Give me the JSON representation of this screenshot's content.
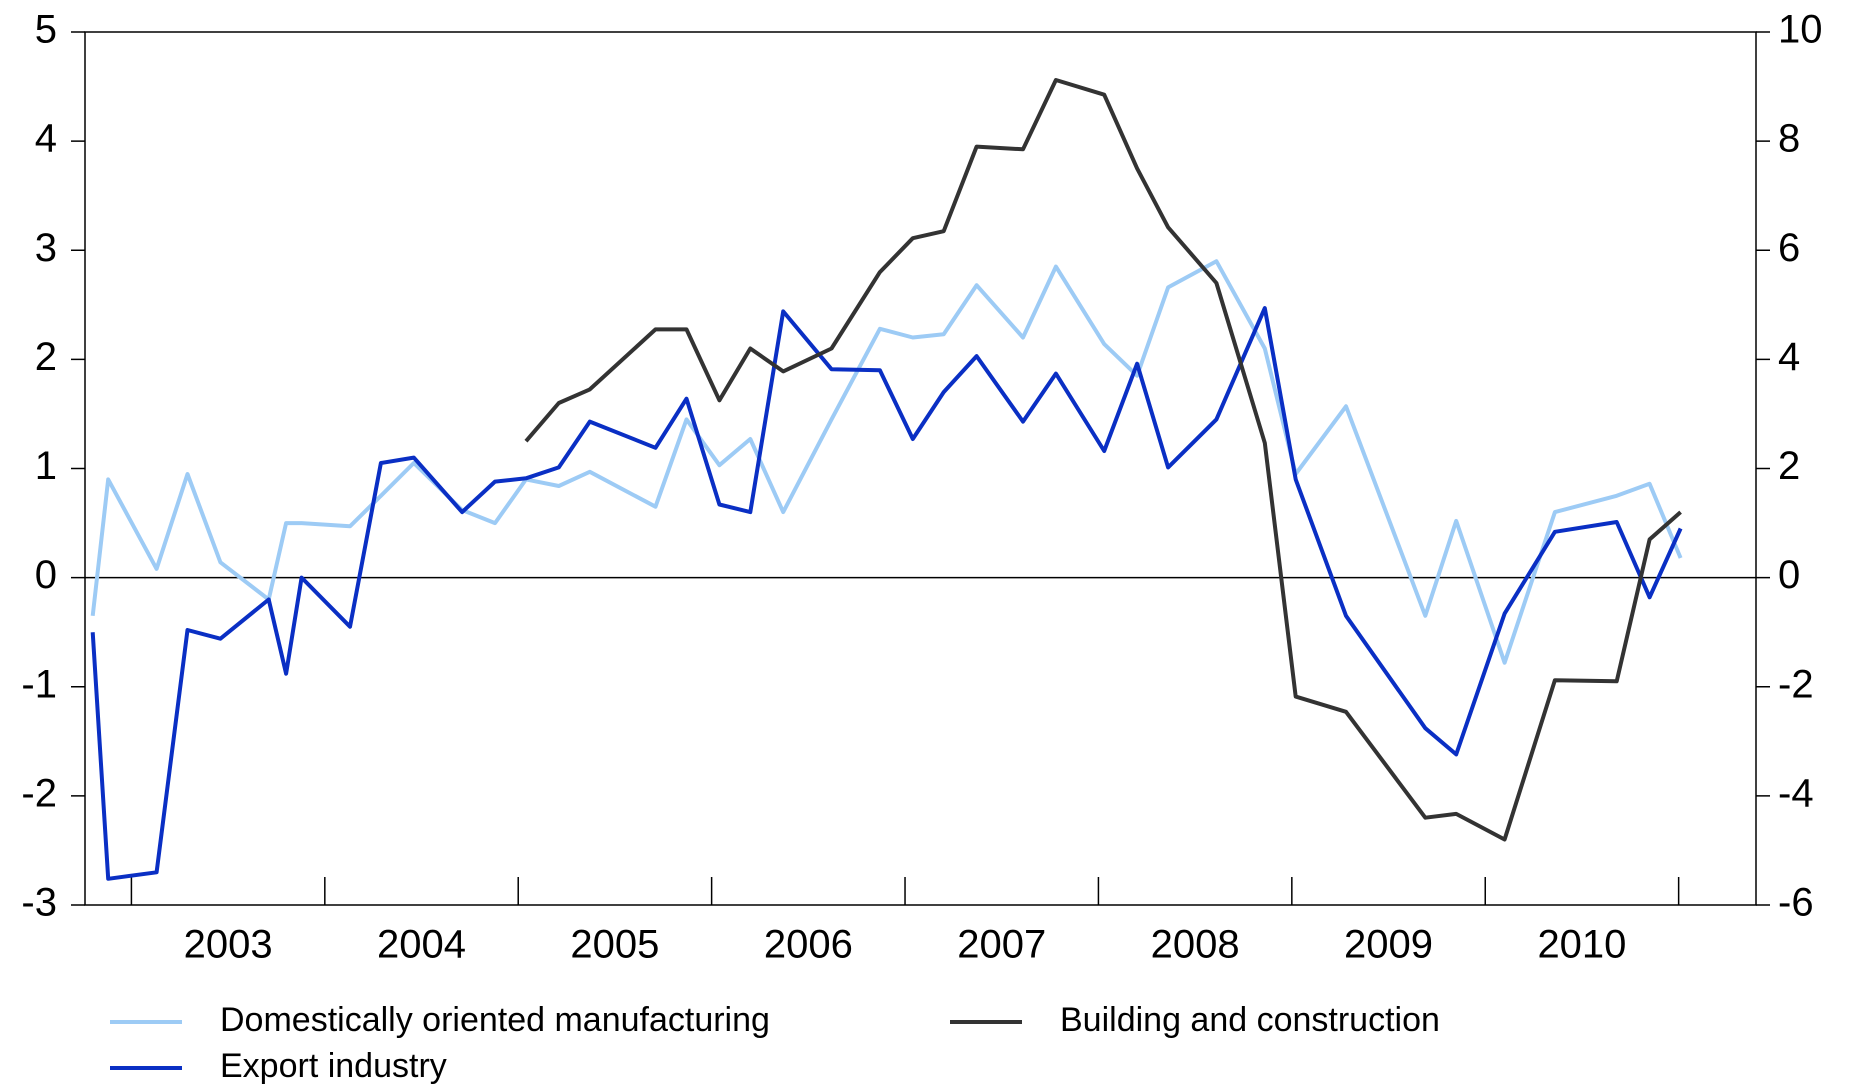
{
  "chart_data": {
    "type": "line",
    "x": [
      2002.8,
      2002.88,
      2003.13,
      2003.29,
      2003.46,
      2003.71,
      2003.8,
      2003.88,
      2004.13,
      2004.29,
      2004.46,
      2004.71,
      2004.88,
      2005.04,
      2005.21,
      2005.37,
      2005.71,
      2005.87,
      2006.04,
      2006.2,
      2006.37,
      2006.62,
      2006.87,
      2007.04,
      2007.2,
      2007.37,
      2007.61,
      2007.78,
      2008.03,
      2008.2,
      2008.36,
      2008.61,
      2008.86,
      2009.02,
      2009.28,
      2009.69,
      2009.85,
      2010.1,
      2010.36,
      2010.68,
      2010.85,
      2011.01
    ],
    "series": [
      {
        "name": "Domestically oriented manufacturing",
        "color": "#9dcbf5",
        "values": [
          -0.35,
          0.9,
          0.08,
          0.95,
          0.14,
          -0.2,
          0.5,
          0.5,
          0.47,
          0.75,
          1.05,
          0.62,
          0.5,
          0.9,
          0.84,
          0.97,
          0.65,
          1.45,
          1.03,
          1.27,
          0.6,
          1.45,
          2.28,
          2.2,
          2.23,
          2.68,
          2.2,
          2.85,
          2.14,
          1.85,
          2.66,
          2.9,
          2.1,
          0.95,
          1.57,
          -0.35,
          0.52,
          -0.78,
          0.6,
          0.75,
          0.86,
          0.18
        ]
      },
      {
        "name": "Export industry",
        "color": "#0a2fc4",
        "values": [
          -0.5,
          -2.76,
          -2.7,
          -0.48,
          -0.56,
          -0.2,
          -0.88,
          0.0,
          -0.45,
          1.05,
          1.1,
          0.6,
          0.88,
          0.91,
          1.01,
          1.43,
          1.19,
          1.64,
          0.67,
          0.6,
          2.44,
          1.91,
          1.9,
          1.27,
          1.7,
          2.03,
          1.43,
          1.87,
          1.16,
          1.96,
          1.01,
          1.45,
          2.47,
          0.9,
          -0.35,
          -1.38,
          -1.62,
          -0.33,
          0.42,
          0.51,
          -0.18,
          0.45
        ]
      },
      {
        "name": "Building and construction",
        "color": "#333333",
        "axis": "y2",
        "values": [
          null,
          null,
          null,
          null,
          null,
          null,
          null,
          null,
          null,
          null,
          null,
          null,
          null,
          2.5,
          3.2,
          3.45,
          4.55,
          4.55,
          3.25,
          4.2,
          3.78,
          4.2,
          5.6,
          6.22,
          6.35,
          7.9,
          7.85,
          9.12,
          8.85,
          7.5,
          6.42,
          5.4,
          2.47,
          -2.18,
          -2.46,
          -4.4,
          -4.33,
          -4.8,
          -1.88,
          -1.9,
          0.7,
          1.2
        ]
      }
    ],
    "xlim": [
      2002.76,
      2011.4
    ],
    "xticks": [
      {
        "value": 2003.5,
        "label": "2003"
      },
      {
        "value": 2004.5,
        "label": "2004"
      },
      {
        "value": 2005.5,
        "label": "2005"
      },
      {
        "value": 2006.5,
        "label": "2006"
      },
      {
        "value": 2007.5,
        "label": "2007"
      },
      {
        "value": 2008.5,
        "label": "2008"
      },
      {
        "value": 2009.5,
        "label": "2009"
      },
      {
        "value": 2010.5,
        "label": "2010"
      }
    ],
    "ylim": [
      -3,
      5
    ],
    "yticks": [
      -3,
      -2,
      -1,
      0,
      1,
      2,
      3,
      4,
      5
    ],
    "y2lim": [
      -6,
      10
    ],
    "y2ticks": [
      -6,
      -4,
      -2,
      0,
      2,
      4,
      6,
      8,
      10
    ],
    "legend": "bottom"
  }
}
